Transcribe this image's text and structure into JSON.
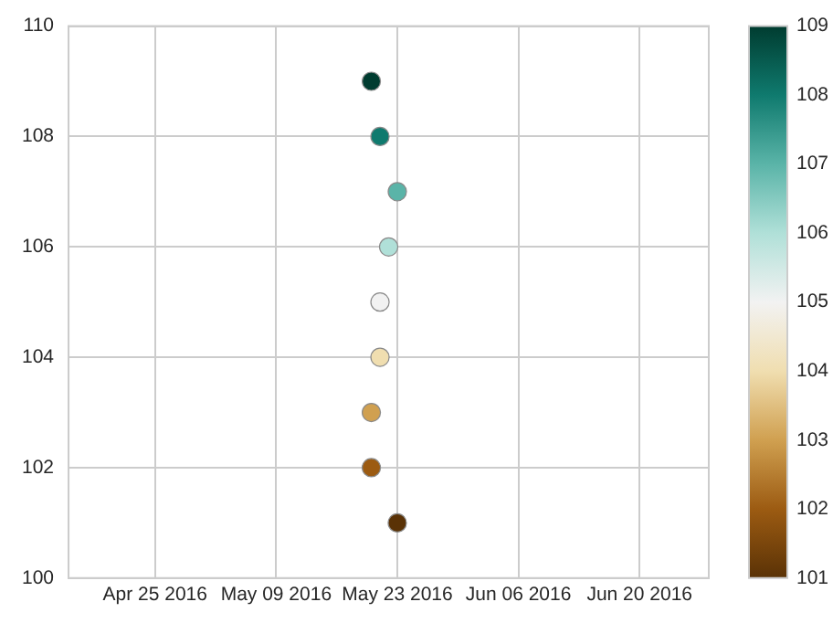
{
  "chart_data": {
    "type": "scatter",
    "x": [
      "2016-05-20",
      "2016-05-21",
      "2016-05-23",
      "2016-05-22",
      "2016-05-21",
      "2016-05-21",
      "2016-05-20",
      "2016-05-20",
      "2016-05-23"
    ],
    "values": [
      109,
      108,
      107,
      106,
      105,
      104,
      103,
      102,
      101
    ],
    "cvalues": [
      109,
      108,
      107,
      106,
      105,
      104,
      103,
      102,
      101
    ],
    "colors": [
      "#003c30",
      "#0f7a6e",
      "#5ab4a8",
      "#b0e0d8",
      "#f2f2f2",
      "#f0deb0",
      "#d0a050",
      "#9c5b12",
      "#5a3206"
    ],
    "xlim": [
      "2016-04-15",
      "2016-06-28"
    ],
    "xticks": [
      {
        "value": "2016-04-25",
        "label": "Apr 25 2016"
      },
      {
        "value": "2016-05-09",
        "label": "May 09 2016"
      },
      {
        "value": "2016-05-23",
        "label": "May 23 2016"
      },
      {
        "value": "2016-06-06",
        "label": "Jun 06 2016"
      },
      {
        "value": "2016-06-20",
        "label": "Jun 20 2016"
      }
    ],
    "ylim": [
      100,
      110
    ],
    "yticks": [
      100,
      102,
      104,
      106,
      108,
      110
    ],
    "clim": [
      101,
      109
    ],
    "cticks": [
      101,
      102,
      103,
      104,
      105,
      106,
      107,
      108,
      109
    ],
    "grid": true,
    "marker": "circle"
  }
}
